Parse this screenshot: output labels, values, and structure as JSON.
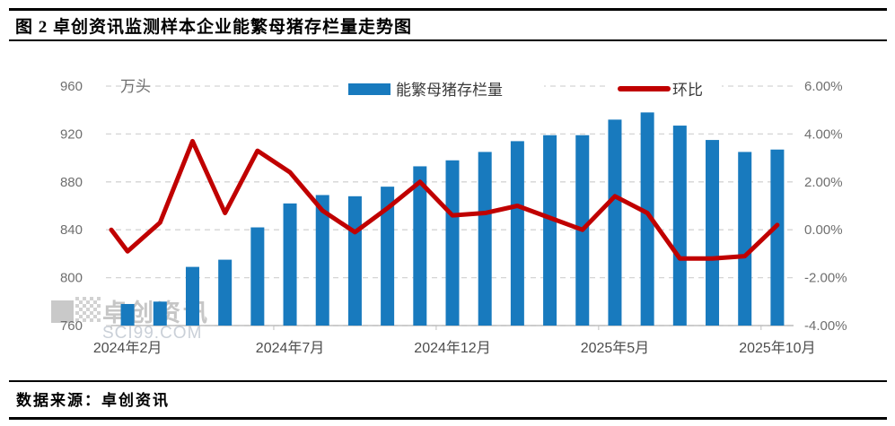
{
  "header": {
    "title": "图 2 卓创资讯监测样本企业能繁母猪存栏量走势图"
  },
  "footer": {
    "source": "数据来源：卓创资讯"
  },
  "watermark": {
    "brand": "卓创资讯",
    "domain": "SCI99.COM"
  },
  "colors": {
    "bar": "#187ABE",
    "line": "#C00000",
    "axis_text": "#6F6F6F",
    "x_axis_text": "#4D4D4D",
    "legend_text": "#3A3A3A",
    "gridline": "#D4D4D4",
    "axis_line": "#BFBFBF",
    "watermark_gray": "#C6C6C6",
    "watermark_domain": "#CAD0D8"
  },
  "chart_data": {
    "type": "combo-bar-line",
    "unit_label": "万头",
    "months": [
      "2024-02",
      "2024-03",
      "2024-04",
      "2024-05",
      "2024-06",
      "2024-07",
      "2024-08",
      "2024-09",
      "2024-10",
      "2024-11",
      "2024-12",
      "2025-01",
      "2025-02",
      "2025-03",
      "2025-04",
      "2025-05",
      "2025-06",
      "2025-07",
      "2025-08",
      "2025-09",
      "2025-10"
    ],
    "x_tick_labels": [
      "2024年2月",
      "2024年7月",
      "2024年12月",
      "2025年5月",
      "2025年10月"
    ],
    "x_tick_indices": [
      0,
      5,
      10,
      15,
      20
    ],
    "left_axis": {
      "label": "万头",
      "ticks": [
        760,
        800,
        840,
        880,
        920,
        960
      ],
      "range": [
        760,
        960
      ]
    },
    "right_axis": {
      "tick_labels_top_to_bottom": [
        "6.00%",
        "4.00%",
        "2.00%",
        "0.00%",
        "-2.00%",
        "-4.00%"
      ],
      "range_pct": [
        -4,
        6
      ]
    },
    "grid": "horizontal-dashed",
    "legend_position": "top",
    "series": [
      {
        "name": "能繁母猪存栏量",
        "type": "bar",
        "axis": "left",
        "values": [
          778,
          780,
          809,
          815,
          842,
          862,
          869,
          868,
          876,
          893,
          898,
          905,
          914,
          919,
          919,
          932,
          938,
          927,
          915,
          905,
          907
        ]
      },
      {
        "name": "环比",
        "type": "line",
        "axis": "right",
        "values_pct": [
          -0.9,
          0.3,
          3.7,
          0.7,
          3.3,
          2.4,
          0.8,
          -0.1,
          0.9,
          2.0,
          0.6,
          0.7,
          1.0,
          0.5,
          0.0,
          1.4,
          0.7,
          -1.2,
          -1.2,
          -1.1,
          0.2
        ],
        "lead_in_pct": 0.0
      }
    ]
  }
}
